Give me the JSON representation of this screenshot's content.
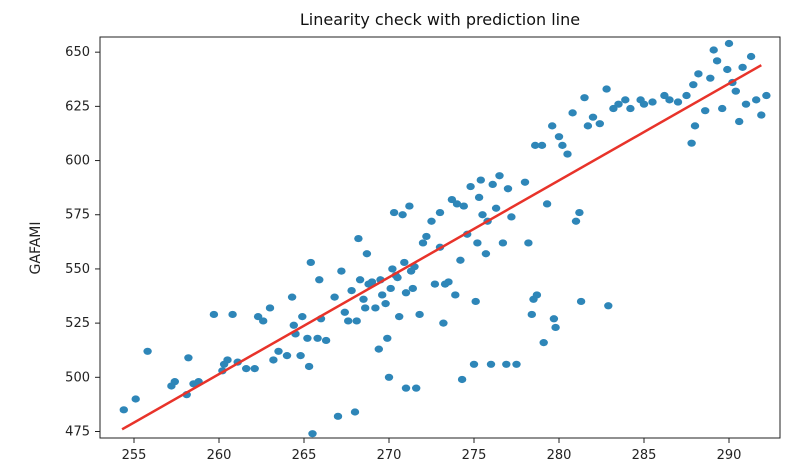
{
  "chart_data": {
    "type": "scatter",
    "title": "Linearity check with prediction line",
    "xlabel": "",
    "ylabel": "GAFAMI",
    "xlim": [
      253,
      293
    ],
    "ylim": [
      472,
      657
    ],
    "xticks": [
      255,
      260,
      265,
      270,
      275,
      280,
      285,
      290
    ],
    "yticks": [
      475,
      500,
      525,
      550,
      575,
      600,
      625,
      650
    ],
    "grid": false,
    "point_color": "#2e86b8",
    "line_color": "#e8332a",
    "series": [
      {
        "type": "scatter",
        "points": [
          [
            254.4,
            485
          ],
          [
            255.1,
            490
          ],
          [
            255.8,
            512
          ],
          [
            257.2,
            496
          ],
          [
            257.4,
            498
          ],
          [
            258.1,
            492
          ],
          [
            258.2,
            509
          ],
          [
            258.5,
            497
          ],
          [
            258.8,
            498
          ],
          [
            259.7,
            529
          ],
          [
            260.2,
            503
          ],
          [
            260.3,
            506
          ],
          [
            260.5,
            508
          ],
          [
            260.8,
            529
          ],
          [
            261.1,
            507
          ],
          [
            261.6,
            504
          ],
          [
            262.1,
            504
          ],
          [
            262.3,
            528
          ],
          [
            262.6,
            526
          ],
          [
            263.0,
            532
          ],
          [
            263.2,
            508
          ],
          [
            263.5,
            512
          ],
          [
            264.0,
            510
          ],
          [
            264.3,
            537
          ],
          [
            264.4,
            524
          ],
          [
            264.5,
            520
          ],
          [
            264.8,
            510
          ],
          [
            264.9,
            528
          ],
          [
            265.2,
            518
          ],
          [
            265.3,
            505
          ],
          [
            265.4,
            553
          ],
          [
            265.5,
            474
          ],
          [
            265.8,
            518
          ],
          [
            265.9,
            545
          ],
          [
            266.0,
            527
          ],
          [
            266.3,
            517
          ],
          [
            266.8,
            537
          ],
          [
            267.0,
            482
          ],
          [
            267.2,
            549
          ],
          [
            267.4,
            530
          ],
          [
            267.6,
            526
          ],
          [
            267.8,
            540
          ],
          [
            268.0,
            484
          ],
          [
            268.1,
            526
          ],
          [
            268.2,
            564
          ],
          [
            268.3,
            545
          ],
          [
            268.5,
            536
          ],
          [
            268.6,
            532
          ],
          [
            268.7,
            557
          ],
          [
            268.8,
            543
          ],
          [
            269.0,
            544
          ],
          [
            269.2,
            532
          ],
          [
            269.4,
            513
          ],
          [
            269.5,
            545
          ],
          [
            269.6,
            538
          ],
          [
            269.8,
            534
          ],
          [
            269.9,
            518
          ],
          [
            270.0,
            500
          ],
          [
            270.1,
            541
          ],
          [
            270.2,
            550
          ],
          [
            270.3,
            576
          ],
          [
            270.4,
            547
          ],
          [
            270.5,
            546
          ],
          [
            270.6,
            528
          ],
          [
            270.8,
            575
          ],
          [
            270.9,
            553
          ],
          [
            271.0,
            495
          ],
          [
            271.0,
            539
          ],
          [
            271.2,
            579
          ],
          [
            271.3,
            549
          ],
          [
            271.4,
            541
          ],
          [
            271.5,
            551
          ],
          [
            271.6,
            495
          ],
          [
            271.8,
            529
          ],
          [
            272.0,
            562
          ],
          [
            272.2,
            565
          ],
          [
            272.5,
            572
          ],
          [
            272.7,
            543
          ],
          [
            273.0,
            560
          ],
          [
            273.0,
            576
          ],
          [
            273.2,
            525
          ],
          [
            273.3,
            543
          ],
          [
            273.5,
            544
          ],
          [
            273.7,
            582
          ],
          [
            273.9,
            538
          ],
          [
            274.0,
            580
          ],
          [
            274.2,
            554
          ],
          [
            274.3,
            499
          ],
          [
            274.4,
            579
          ],
          [
            274.6,
            566
          ],
          [
            274.8,
            588
          ],
          [
            275.0,
            506
          ],
          [
            275.1,
            535
          ],
          [
            275.2,
            562
          ],
          [
            275.3,
            583
          ],
          [
            275.4,
            591
          ],
          [
            275.5,
            575
          ],
          [
            275.7,
            557
          ],
          [
            275.8,
            572
          ],
          [
            276.0,
            506
          ],
          [
            276.1,
            589
          ],
          [
            276.3,
            578
          ],
          [
            276.5,
            593
          ],
          [
            276.7,
            562
          ],
          [
            276.9,
            506
          ],
          [
            277.0,
            587
          ],
          [
            277.2,
            574
          ],
          [
            277.5,
            506
          ],
          [
            278.0,
            590
          ],
          [
            278.2,
            562
          ],
          [
            278.4,
            529
          ],
          [
            278.5,
            536
          ],
          [
            278.6,
            607
          ],
          [
            278.7,
            538
          ],
          [
            279.0,
            607
          ],
          [
            279.1,
            516
          ],
          [
            279.3,
            580
          ],
          [
            279.6,
            616
          ],
          [
            279.7,
            527
          ],
          [
            279.8,
            523
          ],
          [
            280.0,
            611
          ],
          [
            280.2,
            607
          ],
          [
            280.5,
            603
          ],
          [
            280.8,
            622
          ],
          [
            281.0,
            572
          ],
          [
            281.2,
            576
          ],
          [
            281.3,
            535
          ],
          [
            281.5,
            629
          ],
          [
            281.7,
            616
          ],
          [
            282.0,
            620
          ],
          [
            282.4,
            617
          ],
          [
            282.8,
            633
          ],
          [
            282.9,
            533
          ],
          [
            283.2,
            624
          ],
          [
            283.5,
            626
          ],
          [
            283.9,
            628
          ],
          [
            284.2,
            624
          ],
          [
            284.8,
            628
          ],
          [
            285.0,
            626
          ],
          [
            285.5,
            627
          ],
          [
            286.2,
            630
          ],
          [
            286.5,
            628
          ],
          [
            287.0,
            627
          ],
          [
            287.5,
            630
          ],
          [
            287.8,
            608
          ],
          [
            287.9,
            635
          ],
          [
            288.0,
            616
          ],
          [
            288.2,
            640
          ],
          [
            288.6,
            623
          ],
          [
            288.9,
            638
          ],
          [
            289.1,
            651
          ],
          [
            289.3,
            646
          ],
          [
            289.6,
            624
          ],
          [
            289.9,
            642
          ],
          [
            290.0,
            654
          ],
          [
            290.2,
            636
          ],
          [
            290.4,
            632
          ],
          [
            290.6,
            618
          ],
          [
            290.8,
            643
          ],
          [
            291.0,
            626
          ],
          [
            291.3,
            648
          ],
          [
            291.6,
            628
          ],
          [
            291.9,
            621
          ],
          [
            292.2,
            630
          ]
        ]
      },
      {
        "type": "line",
        "points": [
          [
            254.3,
            476
          ],
          [
            291.9,
            644
          ]
        ]
      }
    ]
  }
}
